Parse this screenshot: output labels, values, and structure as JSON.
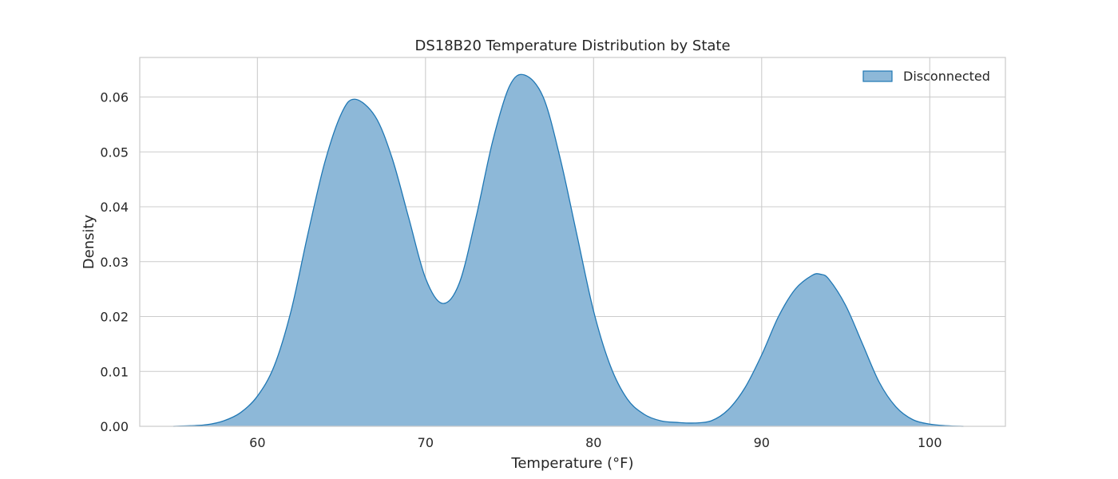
{
  "chart_data": {
    "type": "area",
    "title": "DS18B20 Temperature Distribution by State",
    "xlabel": "Temperature (°F)",
    "ylabel": "Density",
    "xlim": [
      53,
      104.5
    ],
    "ylim": [
      0,
      0.0672
    ],
    "xticks": [
      60,
      70,
      80,
      90,
      100
    ],
    "yticks": [
      0.0,
      0.01,
      0.02,
      0.03,
      0.04,
      0.05,
      0.06
    ],
    "ytick_labels": [
      "0.00",
      "0.01",
      "0.02",
      "0.03",
      "0.04",
      "0.05",
      "0.06"
    ],
    "grid": true,
    "legend": {
      "placement": "top-right"
    },
    "series": [
      {
        "name": "Disconnected",
        "fill_color": "#8db8d8",
        "line_color": "#1f77b4",
        "x": [
          55,
          56,
          57,
          58,
          59,
          60,
          61,
          62,
          63,
          64,
          65,
          65.8,
          67,
          68,
          69,
          70,
          71,
          72,
          73,
          74,
          75,
          75.9,
          77,
          78,
          79,
          80,
          81,
          82,
          83,
          84,
          85,
          86,
          87,
          88,
          89,
          90,
          91,
          92,
          93,
          93.5,
          94,
          95,
          96,
          97,
          98,
          99,
          100,
          101,
          102
        ],
        "y": [
          0.0,
          0.0001,
          0.0003,
          0.001,
          0.0025,
          0.0055,
          0.011,
          0.021,
          0.035,
          0.048,
          0.057,
          0.0596,
          0.0565,
          0.049,
          0.038,
          0.027,
          0.0224,
          0.026,
          0.038,
          0.052,
          0.062,
          0.064,
          0.06,
          0.049,
          0.035,
          0.021,
          0.011,
          0.005,
          0.0022,
          0.001,
          0.0007,
          0.0006,
          0.001,
          0.003,
          0.007,
          0.013,
          0.02,
          0.025,
          0.0275,
          0.0277,
          0.0268,
          0.022,
          0.015,
          0.008,
          0.0035,
          0.0012,
          0.0004,
          0.0001,
          0.0
        ]
      }
    ]
  }
}
